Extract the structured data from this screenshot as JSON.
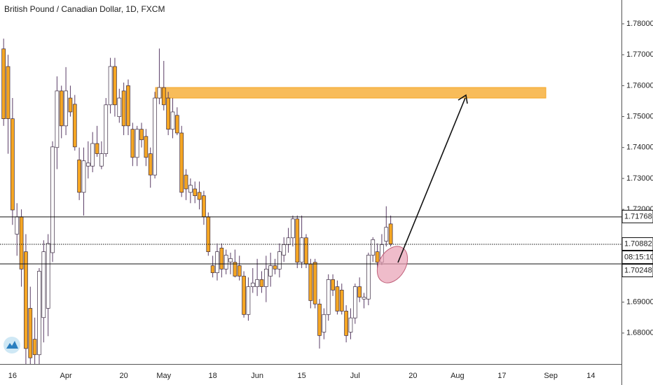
{
  "chart_data": {
    "type": "candlestick",
    "title": "British Pound / Canadian Dollar, 1D, FXCM",
    "categories": [
      null,
      null,
      "16",
      null,
      null,
      null,
      null,
      null,
      null,
      null,
      null,
      null,
      null,
      null,
      "Apr",
      null,
      null,
      null,
      null,
      null,
      null,
      null,
      null,
      null,
      null,
      null,
      null,
      "20",
      null,
      null,
      null,
      null,
      null,
      null,
      null,
      null,
      "May",
      null,
      null,
      null,
      null,
      null,
      null,
      null,
      null,
      null,
      null,
      "18",
      null,
      null,
      null,
      null,
      null,
      null,
      null,
      null,
      null,
      "Jun",
      null,
      null,
      null,
      null,
      null,
      null,
      null,
      null,
      null,
      "15",
      null,
      null,
      null,
      null,
      null,
      null,
      null,
      null,
      null,
      null,
      null,
      "Jul",
      null,
      null,
      null,
      null,
      null,
      null,
      null,
      null,
      null,
      null,
      null,
      null,
      "20",
      null,
      null,
      null,
      null,
      null,
      null,
      null,
      null,
      null,
      "Aug",
      null,
      null,
      null,
      null,
      null,
      null,
      null,
      null,
      null,
      "17",
      null,
      null,
      null,
      null,
      null,
      null,
      null,
      null,
      null,
      null,
      "Sep",
      null,
      null,
      null,
      null,
      null,
      null,
      null,
      null,
      "14",
      null,
      null,
      null,
      null,
      null,
      null
    ],
    "series": {
      "open": [
        1.7719,
        1.7662,
        1.7493,
        1.712,
        1.7176,
        1.7063,
        1.688,
        1.678,
        1.673,
        1.685,
        1.688,
        1.706,
        1.74,
        1.7583,
        1.747,
        1.756,
        1.754,
        1.736,
        1.7255,
        1.734,
        1.734,
        1.7413,
        1.734,
        1.738,
        1.7538,
        1.7662,
        1.75,
        1.7583,
        1.76,
        1.7459,
        1.7368,
        1.7459,
        1.7436,
        1.738,
        1.7311,
        1.756,
        1.7594,
        1.756,
        1.7459,
        1.7504,
        1.7447,
        1.7311,
        1.7255,
        1.7266,
        1.7255,
        1.7244,
        1.7176,
        1.7018,
        1.6995,
        1.7075,
        1.7007,
        1.703,
        1.7029,
        1.7018,
        1.6984,
        1.686,
        1.695,
        1.695,
        1.6973,
        1.695,
        1.6984,
        1.7018,
        1.7007,
        1.7052,
        1.7086,
        1.7108,
        1.7169,
        1.7029,
        1.7108,
        1.7023,
        1.7029,
        1.6894,
        1.6803,
        1.686,
        1.6973,
        1.695,
        1.6939,
        1.6871,
        1.6803,
        1.6849,
        1.695,
        1.691,
        1.691,
        1.7052,
        1.7063,
        1.7029,
        1.7097,
        1.7153,
        null,
        null,
        null,
        null,
        null,
        null,
        null,
        null,
        null,
        null,
        null,
        null,
        null,
        null,
        null,
        null,
        null,
        null,
        null,
        null,
        null,
        null,
        null,
        null,
        null,
        null,
        null,
        null,
        null,
        null,
        null,
        null,
        null,
        null,
        null,
        null,
        null,
        null,
        null,
        null,
        null,
        null,
        null,
        null,
        null,
        null,
        null,
        null,
        null,
        null,
        null
      ],
      "high": [
        1.7752,
        1.77,
        1.756,
        1.722,
        1.72,
        1.712,
        1.695,
        1.685,
        1.701,
        1.71,
        1.712,
        1.742,
        1.763,
        1.76,
        1.766,
        1.76,
        1.757,
        1.74,
        1.74,
        1.742,
        1.745,
        1.747,
        1.742,
        1.756,
        1.769,
        1.769,
        1.759,
        1.761,
        1.762,
        1.748,
        1.747,
        1.748,
        1.746,
        1.74,
        1.758,
        1.772,
        1.768,
        1.758,
        1.756,
        1.753,
        1.747,
        1.733,
        1.73,
        1.729,
        1.729,
        1.726,
        1.719,
        1.705,
        1.709,
        1.709,
        1.707,
        1.706,
        1.707,
        1.705,
        1.7,
        1.698,
        1.701,
        1.704,
        1.7,
        1.705,
        1.706,
        1.704,
        1.709,
        1.711,
        1.714,
        1.718,
        1.718,
        1.718,
        1.712,
        1.704,
        1.704,
        1.691,
        1.688,
        1.699,
        1.699,
        1.697,
        1.696,
        1.689,
        1.688,
        1.696,
        1.698,
        1.693,
        1.706,
        1.711,
        1.709,
        1.712,
        1.721,
        1.718,
        null,
        null,
        null,
        null,
        null,
        null,
        null,
        null,
        null,
        null,
        null,
        null,
        null,
        null,
        null,
        null,
        null,
        null,
        null,
        null,
        null,
        null,
        null,
        null,
        null,
        null,
        null,
        null,
        null,
        null,
        null,
        null,
        null,
        null,
        null,
        null,
        null,
        null,
        null,
        null,
        null,
        null,
        null,
        null,
        null,
        null,
        null,
        null,
        null,
        null,
        null
      ],
      "low": [
        1.747,
        1.738,
        1.715,
        1.705,
        1.695,
        1.67,
        1.67,
        1.67,
        1.67,
        1.677,
        1.679,
        1.703,
        1.733,
        1.743,
        1.744,
        1.75,
        1.739,
        1.723,
        1.718,
        1.73,
        1.732,
        1.737,
        1.733,
        1.737,
        1.751,
        1.75,
        1.748,
        1.744,
        1.744,
        1.734,
        1.734,
        1.74,
        1.734,
        1.727,
        1.73,
        1.754,
        1.752,
        1.744,
        1.743,
        1.744,
        1.724,
        1.723,
        1.722,
        1.722,
        1.72,
        1.715,
        1.705,
        1.698,
        1.697,
        1.698,
        1.699,
        1.699,
        1.698,
        1.697,
        1.685,
        1.684,
        1.693,
        1.692,
        1.693,
        1.69,
        1.695,
        1.699,
        1.698,
        1.703,
        1.706,
        1.708,
        1.701,
        1.701,
        1.701,
        1.688,
        1.688,
        1.675,
        1.678,
        1.684,
        1.692,
        1.686,
        1.686,
        1.677,
        1.678,
        1.683,
        1.69,
        1.688,
        1.689,
        1.703,
        1.701,
        1.702,
        1.708,
        1.708,
        null,
        null,
        null,
        null,
        null,
        null,
        null,
        null,
        null,
        null,
        null,
        null,
        null,
        null,
        null,
        null,
        null,
        null,
        null,
        null,
        null,
        null,
        null,
        null,
        null,
        null,
        null,
        null,
        null,
        null,
        null,
        null,
        null,
        null,
        null,
        null,
        null,
        null,
        null,
        null,
        null,
        null,
        null,
        null,
        null,
        null,
        null,
        null,
        null,
        null,
        null
      ],
      "close": [
        1.7493,
        1.7493,
        1.7198,
        1.7176,
        1.7007,
        1.675,
        1.672,
        1.673,
        1.7,
        1.7063,
        1.709,
        1.7402,
        1.7583,
        1.747,
        1.7583,
        1.7515,
        1.7402,
        1.7255,
        1.7357,
        1.735,
        1.7413,
        1.738,
        1.738,
        1.7538,
        1.7662,
        1.7538,
        1.756,
        1.747,
        1.747,
        1.7368,
        1.7459,
        1.7425,
        1.7368,
        1.7311,
        1.756,
        1.7594,
        1.7538,
        1.7459,
        1.7515,
        1.7447,
        1.7255,
        1.7266,
        1.7278,
        1.7244,
        1.7232,
        1.7176,
        1.7063,
        1.6995,
        1.7063,
        1.7007,
        1.7052,
        1.7041,
        1.6984,
        1.6984,
        1.686,
        1.695,
        1.6962,
        1.6973,
        1.695,
        1.7007,
        1.7018,
        1.7007,
        1.7063,
        1.7086,
        1.7108,
        1.7169,
        1.7029,
        1.7108,
        1.7023,
        1.6905,
        1.6894,
        1.6792,
        1.686,
        1.6973,
        1.6939,
        1.6871,
        1.6871,
        1.6792,
        1.6849,
        1.695,
        1.6916,
        1.6916,
        1.7052,
        1.7102,
        1.7029,
        1.7086,
        1.7142,
        1.7088,
        null,
        null,
        null,
        null,
        null,
        null,
        null,
        null,
        null,
        null,
        null,
        null,
        null,
        null,
        null,
        null,
        null,
        null,
        null,
        null,
        null,
        null,
        null,
        null,
        null,
        null,
        null,
        null,
        null,
        null,
        null,
        null,
        null,
        null,
        null,
        null,
        null,
        null,
        null,
        null,
        null,
        null,
        null,
        null,
        null,
        null,
        null,
        null,
        null,
        null,
        null
      ]
    },
    "up_color": "#ffffff",
    "down_color": "#f5a623",
    "wick_color": "#5a3d66",
    "ylim": [
      1.67,
      1.7877
    ],
    "yticks": [
      {
        "value": 1.78,
        "label": "1.78000"
      },
      {
        "value": 1.77,
        "label": "1.77000"
      },
      {
        "value": 1.76,
        "label": "1.76000"
      },
      {
        "value": 1.75,
        "label": "1.75000"
      },
      {
        "value": 1.74,
        "label": "1.74000"
      },
      {
        "value": 1.73,
        "label": "1.73000"
      },
      {
        "value": 1.72,
        "label": "1.72000"
      },
      {
        "value": 1.69,
        "label": "1.69000"
      },
      {
        "value": 1.68,
        "label": "1.68000"
      }
    ],
    "price_lines": [
      {
        "value": 1.71768,
        "style": "solid"
      },
      {
        "value": 1.70882,
        "style": "dotted"
      },
      {
        "value": 1.70248,
        "style": "solid"
      }
    ],
    "countdown": "08:15:10",
    "zone": {
      "top": 1.7594,
      "bottom": 1.756,
      "color": "#f5a623"
    },
    "grid": false
  }
}
